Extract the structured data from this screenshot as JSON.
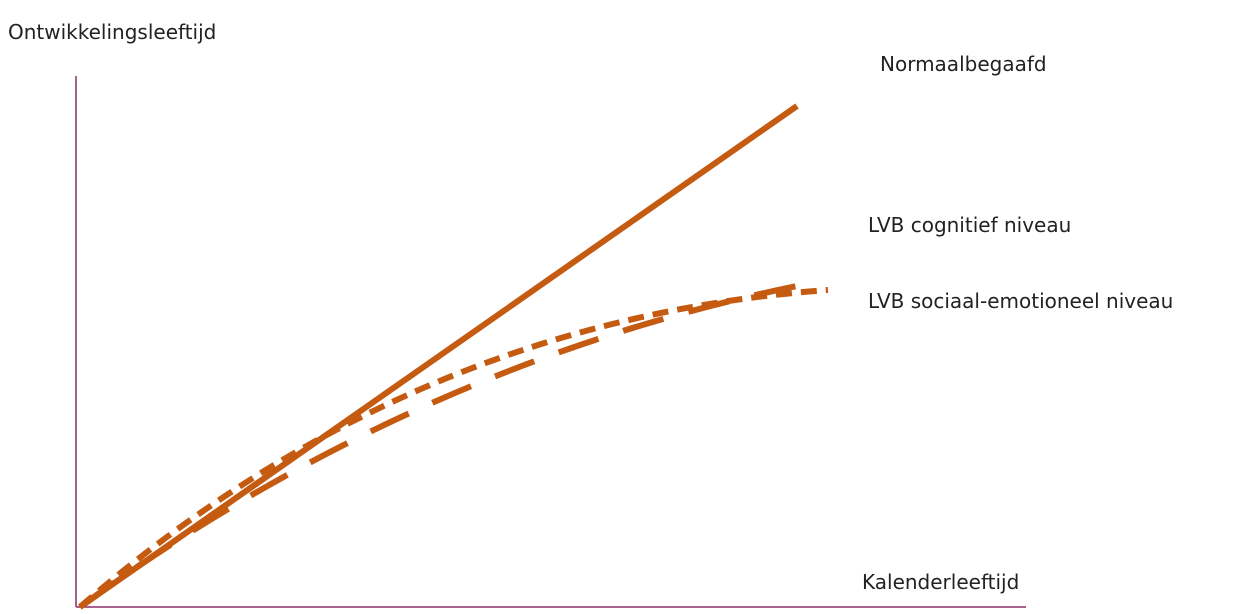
{
  "diagram": {
    "y_axis_label": "Ontwikkelingsleeftijd",
    "x_axis_label": "Kalenderleeftijd",
    "axis_color": "#8b2f6e",
    "line_color": "#c55a11",
    "lines": [
      {
        "label": "Normaalbegaafd",
        "style": "solid"
      },
      {
        "label": "LVB cognitief niveau",
        "style": "long-dash"
      },
      {
        "label": "LVB sociaal-emotioneel niveau",
        "style": "short-dash"
      }
    ]
  }
}
